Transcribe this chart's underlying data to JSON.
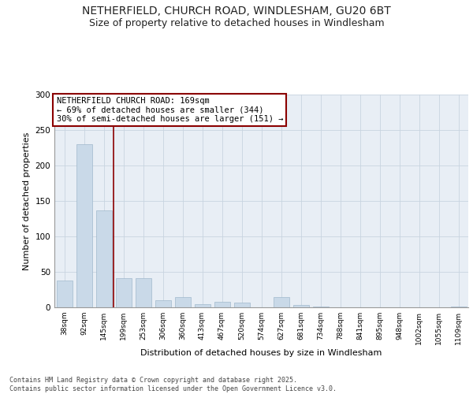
{
  "title_line1": "NETHERFIELD, CHURCH ROAD, WINDLESHAM, GU20 6BT",
  "title_line2": "Size of property relative to detached houses in Windlesham",
  "xlabel": "Distribution of detached houses by size in Windlesham",
  "ylabel": "Number of detached properties",
  "categories": [
    "38sqm",
    "92sqm",
    "145sqm",
    "199sqm",
    "253sqm",
    "306sqm",
    "360sqm",
    "413sqm",
    "467sqm",
    "520sqm",
    "574sqm",
    "627sqm",
    "681sqm",
    "734sqm",
    "788sqm",
    "841sqm",
    "895sqm",
    "948sqm",
    "1002sqm",
    "1055sqm",
    "1109sqm"
  ],
  "values": [
    38,
    230,
    137,
    41,
    41,
    10,
    15,
    5,
    8,
    7,
    0,
    15,
    3,
    1,
    0,
    0,
    0,
    0,
    0,
    0,
    1
  ],
  "bar_color": "#c9d9e8",
  "bar_edgecolor": "#a0b8cc",
  "vline_x": 2.5,
  "vline_color": "#8b0000",
  "annotation_text": "NETHERFIELD CHURCH ROAD: 169sqm\n← 69% of detached houses are smaller (344)\n30% of semi-detached houses are larger (151) →",
  "annotation_box_color": "#ffffff",
  "annotation_border_color": "#8b0000",
  "annotation_fontsize": 7.5,
  "ylim": [
    0,
    300
  ],
  "yticks": [
    0,
    50,
    100,
    150,
    200,
    250,
    300
  ],
  "grid_color": "#c8d4e0",
  "background_color": "#e8eef5",
  "footer_text": "Contains HM Land Registry data © Crown copyright and database right 2025.\nContains public sector information licensed under the Open Government Licence v3.0.",
  "title_fontsize": 10,
  "subtitle_fontsize": 9
}
